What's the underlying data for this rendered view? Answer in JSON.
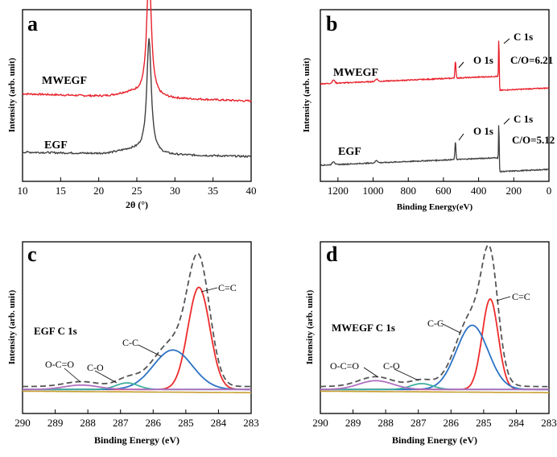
{
  "chart_data": [
    {
      "type": "line",
      "panel": "a",
      "xlabel": "2θ (°)",
      "ylabel": "Intensity (arb. unit)",
      "xlim": [
        10,
        40
      ],
      "xticks": [
        10,
        15,
        20,
        25,
        30,
        35,
        40
      ],
      "series": [
        {
          "name": "MWEGF",
          "color": "#e8202a",
          "peak_x": 26.6,
          "baseline": 0.66,
          "peak_height": 0.93
        },
        {
          "name": "EGF",
          "color": "#404040",
          "peak_x": 26.6,
          "baseline": 0.12,
          "peak_height": 0.83
        }
      ]
    },
    {
      "type": "line",
      "panel": "b",
      "xlabel": "Binding Energy(eV)",
      "ylabel": "Intensity (arb. unit)",
      "xlim": [
        1300,
        0
      ],
      "xticks": [
        1200,
        1000,
        800,
        600,
        400,
        200,
        0
      ],
      "xtick_labels": [
        "1200",
        "1000",
        "800",
        "600",
        "400",
        "200",
        "0"
      ],
      "series": [
        {
          "name": "MWEGF",
          "color": "#e8202a",
          "O1s_peak": 532,
          "C1s_peak": 284.6,
          "c_o_ratio": "C/O=6.21"
        },
        {
          "name": "EGF",
          "color": "#404040",
          "O1s_peak": 532,
          "C1s_peak": 284.6,
          "c_o_ratio": "C/O=5.12"
        }
      ],
      "annotations": [
        "O 1s",
        "C 1s"
      ]
    },
    {
      "type": "line",
      "panel": "c",
      "title": "EGF C 1s",
      "xlabel": "Binding Energy (eV)",
      "ylabel": "Intensity (arb. unit)",
      "xlim": [
        290,
        283
      ],
      "xticks": [
        290,
        289,
        288,
        287,
        286,
        285,
        284,
        283
      ],
      "components": [
        {
          "name": "C=C",
          "center": 284.6,
          "height": 0.7,
          "width": 0.45,
          "color": "#ee2b2b"
        },
        {
          "name": "C-C",
          "center": 285.4,
          "height": 0.27,
          "width": 0.8,
          "color": "#2c72c4"
        },
        {
          "name": "C-O",
          "center": 286.8,
          "height": 0.045,
          "width": 0.45,
          "color": "#40b0a0"
        },
        {
          "name": "O-C=O",
          "center": 288.2,
          "height": 0.03,
          "width": 0.7,
          "color": "#b070c0"
        }
      ],
      "envelope_color": "#555555",
      "baseline_color": "#c8a030"
    },
    {
      "type": "line",
      "panel": "d",
      "title": "MWEGF C 1s",
      "xlabel": "Binding Energy (eV)",
      "ylabel": "Intensity (arb. unit)",
      "xlim": [
        290,
        283
      ],
      "xticks": [
        290,
        289,
        288,
        287,
        286,
        285,
        284,
        283
      ],
      "components": [
        {
          "name": "C=C",
          "center": 284.8,
          "height": 0.62,
          "width": 0.33,
          "color": "#ee2b2b"
        },
        {
          "name": "C-C",
          "center": 285.35,
          "height": 0.44,
          "width": 0.65,
          "color": "#2c72c4"
        },
        {
          "name": "C-O",
          "center": 286.9,
          "height": 0.04,
          "width": 0.45,
          "color": "#40b0a0"
        },
        {
          "name": "O-C=O",
          "center": 288.3,
          "height": 0.06,
          "width": 0.7,
          "color": "#b070c0"
        }
      ],
      "envelope_color": "#555555",
      "baseline_color": "#c8a030"
    }
  ],
  "labels": {
    "panel_a": "a",
    "panel_b": "b",
    "panel_c": "c",
    "panel_d": "d",
    "a_mwegf": "MWEGF",
    "a_egf": "EGF",
    "b_mwegf": "MWEGF",
    "b_egf": "EGF",
    "b_o1s_top": "O 1s",
    "b_c1s_top": "C 1s",
    "b_co_top": "C/O=6.21",
    "b_o1s_bot": "O 1s",
    "b_c1s_bot": "C 1s",
    "b_co_bot": "C/O=5.12",
    "c_title": "EGF C 1s",
    "c_cc_double": "C=C",
    "c_cc": "C-C",
    "c_co": "C-O",
    "c_oco": "O-C=O",
    "d_title": "MWEGF C 1s",
    "d_cc_double": "C=C",
    "d_cc": "C-C",
    "d_co": "C-O",
    "d_oco": "O-C=O",
    "ylabel": "Intensity (arb. unit)",
    "a_xlabel": "2θ (°)",
    "b_xlabel": "Binding Energy(eV)",
    "cd_xlabel": "Binding Energy (eV)"
  }
}
